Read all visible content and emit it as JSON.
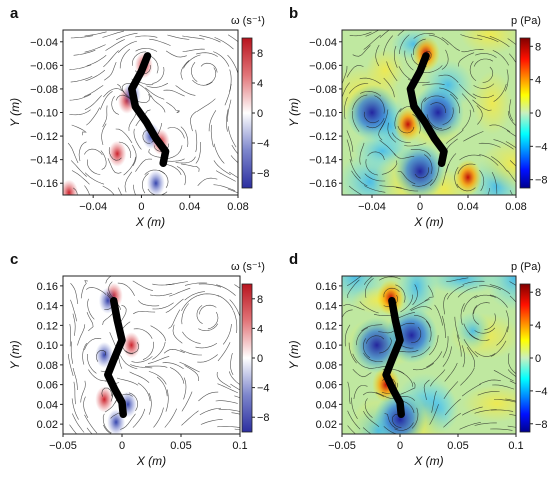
{
  "figure": {
    "panels": [
      {
        "letter": "a",
        "quantity": "vorticity",
        "cbar_title": "ω (s⁻¹)",
        "cbar_ticks": [
          "8",
          "4",
          "0",
          "−4",
          "−8"
        ],
        "xlabel": "X (m)",
        "ylabel": "Y (m)",
        "xticks": [
          "−0.04",
          "0",
          "0.04",
          "0.08"
        ],
        "yticks": [
          "−0.04",
          "−0.06",
          "−0.08",
          "−0.10",
          "−0.12",
          "−0.14",
          "−0.16"
        ]
      },
      {
        "letter": "b",
        "quantity": "pressure",
        "cbar_title": "p (Pa)",
        "cbar_ticks": [
          "8",
          "4",
          "0",
          "−4",
          "−8"
        ],
        "xlabel": "X (m)",
        "ylabel": "Y (m)",
        "xticks": [
          "−0.04",
          "0",
          "0.04",
          "0.08"
        ],
        "yticks": [
          "−0.04",
          "−0.06",
          "−0.08",
          "−0.10",
          "−0.12",
          "−0.14",
          "−0.16"
        ]
      },
      {
        "letter": "c",
        "quantity": "vorticity",
        "cbar_title": "ω (s⁻¹)",
        "cbar_ticks": [
          "8",
          "4",
          "0",
          "−4",
          "−8"
        ],
        "xlabel": "X (m)",
        "ylabel": "Y (m)",
        "xticks": [
          "−0.05",
          "0",
          "0.05",
          "0.1"
        ],
        "yticks": [
          "0.16",
          "0.14",
          "0.12",
          "0.10",
          "0.08",
          "0.06",
          "0.04",
          "0.02"
        ]
      },
      {
        "letter": "d",
        "quantity": "pressure",
        "cbar_title": "p (Pa)",
        "cbar_ticks": [
          "8",
          "4",
          "0",
          "−4",
          "−8"
        ],
        "xlabel": "X (m)",
        "ylabel": "Y (m)",
        "xticks": [
          "−0.05",
          "0",
          "0.05",
          "0.1"
        ],
        "yticks": [
          "0.16",
          "0.14",
          "0.12",
          "0.10",
          "0.08",
          "0.06",
          "0.04",
          "0.02"
        ]
      }
    ]
  },
  "chart_data": [
    {
      "type": "heatmap",
      "panel": "a",
      "field": "vorticity with streamlines",
      "xlabel": "X (m)",
      "ylabel": "Y (m)",
      "xlim": [
        -0.065,
        0.08
      ],
      "ylim": [
        -0.17,
        -0.03
      ],
      "colorbar": {
        "title": "ω (s⁻¹)",
        "range": [
          -10,
          10
        ],
        "colormap": "blue-white-red"
      },
      "body_midline": [
        [
          0.005,
          -0.052
        ],
        [
          0.0,
          -0.065
        ],
        [
          -0.008,
          -0.08
        ],
        [
          -0.005,
          -0.095
        ],
        [
          0.004,
          -0.108
        ],
        [
          0.012,
          -0.122
        ],
        [
          0.02,
          -0.133
        ],
        [
          0.018,
          -0.143
        ]
      ],
      "vortex_regions": [
        {
          "x": 0.002,
          "y": -0.06,
          "sign": "positive"
        },
        {
          "x": -0.012,
          "y": -0.09,
          "sign": "positive"
        },
        {
          "x": -0.008,
          "y": -0.085,
          "sign": "negative"
        },
        {
          "x": 0.008,
          "y": -0.12,
          "sign": "negative"
        },
        {
          "x": 0.016,
          "y": -0.125,
          "sign": "positive"
        },
        {
          "x": 0.012,
          "y": -0.16,
          "sign": "negative"
        },
        {
          "x": -0.02,
          "y": -0.135,
          "sign": "positive"
        },
        {
          "x": -0.06,
          "y": -0.168,
          "sign": "positive"
        }
      ]
    },
    {
      "type": "heatmap",
      "panel": "b",
      "field": "pressure with streamlines",
      "xlabel": "X (m)",
      "ylabel": "Y (m)",
      "xlim": [
        -0.065,
        0.08
      ],
      "ylim": [
        -0.17,
        -0.03
      ],
      "colorbar": {
        "title": "p (Pa)",
        "range": [
          -9,
          9
        ],
        "colormap": "jet"
      },
      "body_midline": [
        [
          0.005,
          -0.052
        ],
        [
          0.0,
          -0.065
        ],
        [
          -0.008,
          -0.08
        ],
        [
          -0.005,
          -0.095
        ],
        [
          0.004,
          -0.108
        ],
        [
          0.012,
          -0.122
        ],
        [
          0.02,
          -0.133
        ],
        [
          0.018,
          -0.143
        ]
      ],
      "pressure_regions": [
        {
          "x": 0.005,
          "y": -0.05,
          "sign": "positive"
        },
        {
          "x": -0.01,
          "y": -0.11,
          "sign": "positive"
        },
        {
          "x": 0.04,
          "y": -0.155,
          "sign": "positive"
        },
        {
          "x": 0.015,
          "y": -0.1,
          "sign": "negative"
        },
        {
          "x": 0.0,
          "y": -0.15,
          "sign": "negative"
        },
        {
          "x": -0.04,
          "y": -0.1,
          "sign": "negative"
        }
      ]
    },
    {
      "type": "heatmap",
      "panel": "c",
      "field": "vorticity with streamlines",
      "xlabel": "X (m)",
      "ylabel": "Y (m)",
      "xlim": [
        -0.05,
        0.1
      ],
      "ylim": [
        0.01,
        0.17
      ],
      "colorbar": {
        "title": "ω (s⁻¹)",
        "range": [
          -10,
          10
        ],
        "colormap": "blue-white-red"
      },
      "body_midline": [
        [
          -0.007,
          0.145
        ],
        [
          -0.004,
          0.125
        ],
        [
          0.0,
          0.105
        ],
        [
          -0.007,
          0.085
        ],
        [
          -0.012,
          0.07
        ],
        [
          -0.006,
          0.055
        ],
        [
          0.0,
          0.042
        ],
        [
          0.001,
          0.03
        ]
      ],
      "vortex_regions": [
        {
          "x": -0.007,
          "y": 0.15,
          "sign": "positive"
        },
        {
          "x": -0.012,
          "y": 0.145,
          "sign": "negative"
        },
        {
          "x": -0.015,
          "y": 0.09,
          "sign": "negative"
        },
        {
          "x": 0.008,
          "y": 0.1,
          "sign": "positive"
        },
        {
          "x": -0.015,
          "y": 0.045,
          "sign": "positive"
        },
        {
          "x": -0.005,
          "y": 0.022,
          "sign": "negative"
        },
        {
          "x": 0.005,
          "y": 0.04,
          "sign": "negative"
        }
      ]
    },
    {
      "type": "heatmap",
      "panel": "d",
      "field": "pressure with streamlines",
      "xlabel": "X (m)",
      "ylabel": "Y (m)",
      "xlim": [
        -0.05,
        0.1
      ],
      "ylim": [
        0.01,
        0.17
      ],
      "colorbar": {
        "title": "p (Pa)",
        "range": [
          -9,
          9
        ],
        "colormap": "jet"
      },
      "body_midline": [
        [
          -0.007,
          0.145
        ],
        [
          -0.004,
          0.125
        ],
        [
          0.0,
          0.105
        ],
        [
          -0.007,
          0.085
        ],
        [
          -0.012,
          0.07
        ],
        [
          -0.006,
          0.055
        ],
        [
          0.0,
          0.042
        ],
        [
          0.001,
          0.03
        ]
      ],
      "pressure_regions": [
        {
          "x": -0.008,
          "y": 0.148,
          "sign": "positive"
        },
        {
          "x": -0.012,
          "y": 0.06,
          "sign": "positive"
        },
        {
          "x": -0.02,
          "y": 0.1,
          "sign": "negative"
        },
        {
          "x": 0.01,
          "y": 0.11,
          "sign": "negative"
        },
        {
          "x": 0.0,
          "y": 0.025,
          "sign": "negative"
        }
      ]
    }
  ]
}
